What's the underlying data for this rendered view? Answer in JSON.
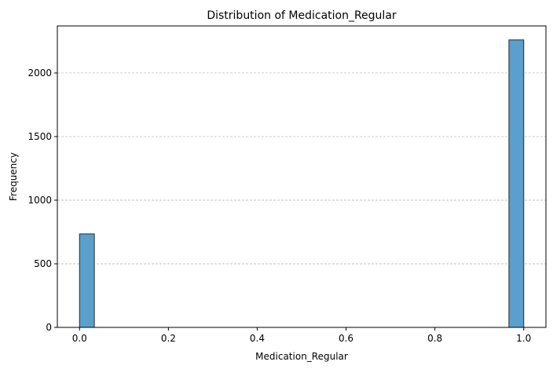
{
  "chart_data": {
    "type": "bar",
    "title": "Distribution of Medication_Regular",
    "xlabel": "Medication_Regular",
    "ylabel": "Frequency",
    "xlim": [
      -0.05,
      1.05
    ],
    "ylim": [
      0,
      2370
    ],
    "x_ticks": [
      "0.0",
      "0.2",
      "0.4",
      "0.6",
      "0.8",
      "1.0"
    ],
    "x_tick_values": [
      0.0,
      0.2,
      0.4,
      0.6,
      0.8,
      1.0
    ],
    "y_ticks": [
      "0",
      "500",
      "1000",
      "1500",
      "2000"
    ],
    "y_tick_values": [
      0,
      500,
      1000,
      1500,
      2000
    ],
    "grid": "y-dashed",
    "bin_width": 0.0333,
    "bars": [
      {
        "x_start": 0.0,
        "value": 735
      },
      {
        "x_start": 0.9667,
        "value": 2260
      }
    ],
    "bar_color": "#5b9fcc",
    "bar_edge_color": "#2b2b2b"
  }
}
